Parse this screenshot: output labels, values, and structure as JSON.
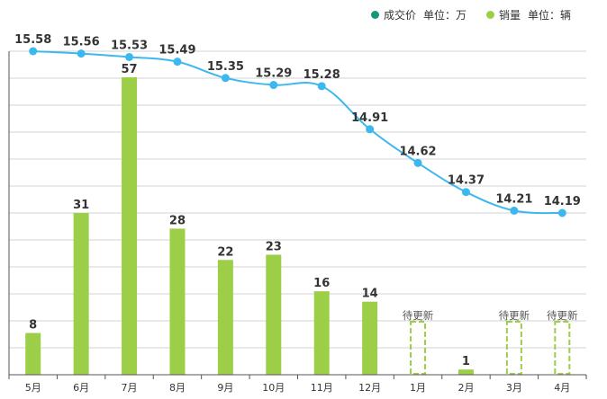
{
  "legend": {
    "price_label": "成交价",
    "price_unit": "单位：万",
    "sales_label": "销量",
    "sales_unit": "单位：辆"
  },
  "chart_data": {
    "type": "bar",
    "categories": [
      "5月",
      "6月",
      "7月",
      "8月",
      "9月",
      "10月",
      "11月",
      "12月",
      "1月",
      "2月",
      "3月",
      "4月"
    ],
    "series": [
      {
        "name": "成交价",
        "chart": "line",
        "unit": "单位：万",
        "color": "#3db8ef",
        "values": [
          15.58,
          15.56,
          15.53,
          15.49,
          15.35,
          15.29,
          15.28,
          14.91,
          14.62,
          14.37,
          14.21,
          14.19
        ]
      },
      {
        "name": "销量",
        "chart": "bar",
        "unit": "单位：辆",
        "color": "#9ccf47",
        "values": [
          8,
          31,
          57,
          28,
          22,
          23,
          16,
          14,
          null,
          1,
          null,
          null
        ],
        "pending_label": "待更新"
      }
    ],
    "grid": true,
    "legend_position": "top-right",
    "colors": {
      "price_dot": "#16977c",
      "line": "#3db8ef",
      "bar": "#9ccf47"
    }
  }
}
